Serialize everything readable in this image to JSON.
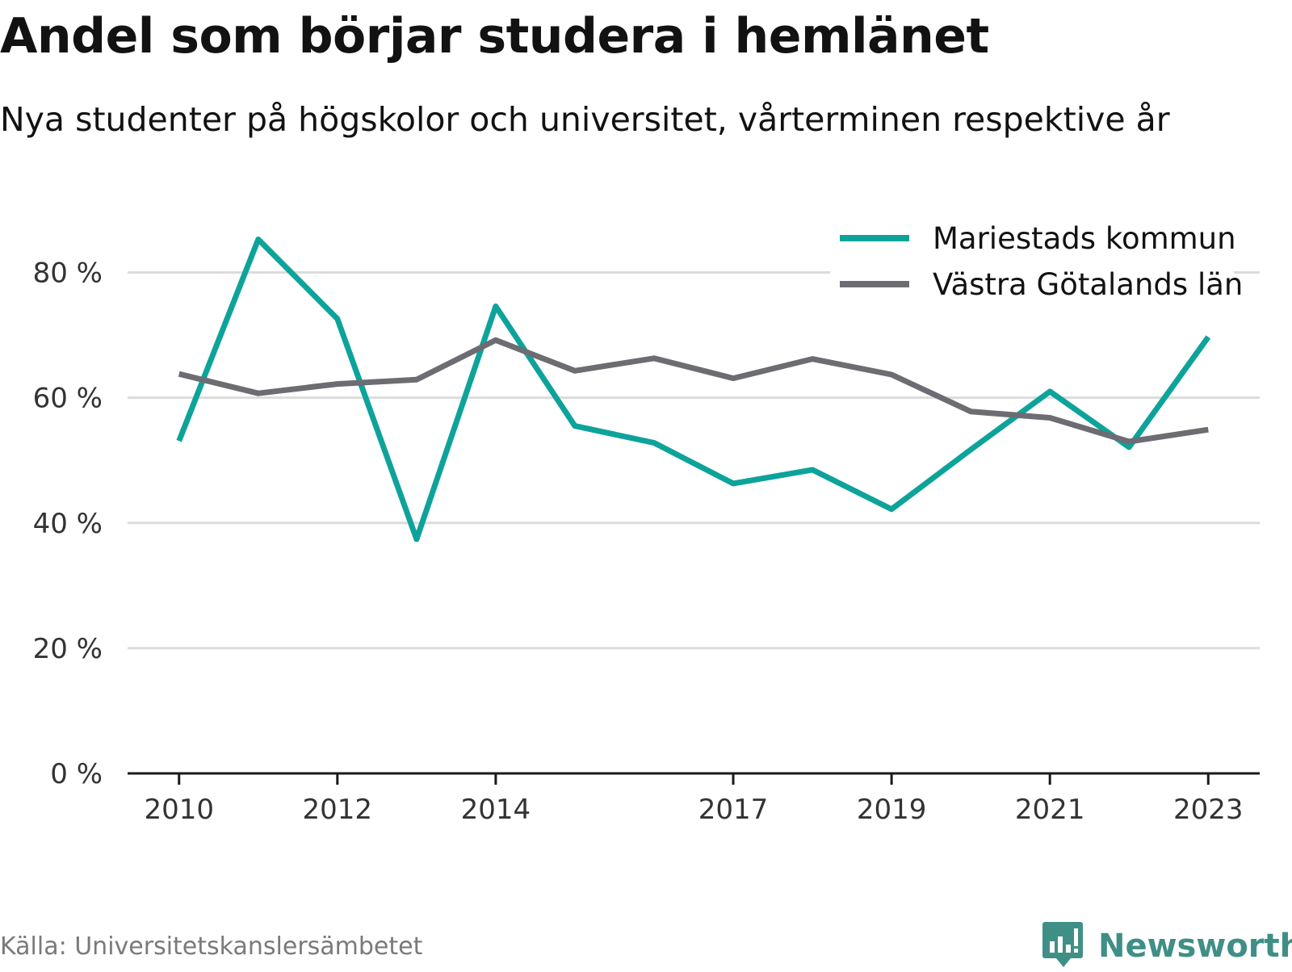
{
  "title": "Andel som börjar studera i hemlänet",
  "subtitle": "Nya studenter på högskolor och universitet, vårterminen respektive år",
  "source": "Källa: Universitetskanslersämbetet",
  "brand": "Newsworthy",
  "colors": {
    "series1": "#0da39a",
    "series2": "#6d6c72",
    "grid": "#dcdcdc",
    "axis": "#1a1a1a",
    "tick_text": "#333333",
    "brand": "#3f8f87"
  },
  "icons": {
    "brand_logo": "bar-chart-speech-bubble-icon"
  },
  "chart_data": {
    "type": "line",
    "x": [
      2010,
      2011,
      2012,
      2013,
      2014,
      2015,
      2016,
      2017,
      2018,
      2019,
      2020,
      2021,
      2022,
      2023
    ],
    "x_ticks": [
      "2010",
      "2012",
      "2014",
      "2017",
      "2019",
      "2021",
      "2023"
    ],
    "y_ticks": [
      "0 %",
      "20 %",
      "40 %",
      "60 %",
      "80 %"
    ],
    "y_tick_values": [
      0,
      20,
      40,
      60,
      80
    ],
    "ylim": [
      0,
      90
    ],
    "xlim": [
      2009.35,
      2023.65
    ],
    "grid": true,
    "legend_position": "top-right",
    "series": [
      {
        "name": "Mariestads kommun",
        "color": "#0da39a",
        "values": [
          53.1,
          85.3,
          72.6,
          37.4,
          74.6,
          55.5,
          52.8,
          46.3,
          48.5,
          42.2,
          51.7,
          61.0,
          52.1,
          69.7
        ]
      },
      {
        "name": "Västra Götalands län",
        "color": "#6d6c72",
        "values": [
          63.8,
          60.7,
          62.2,
          62.9,
          69.2,
          64.3,
          66.3,
          63.1,
          66.2,
          63.7,
          57.8,
          56.8,
          53.0,
          54.9
        ]
      }
    ]
  }
}
